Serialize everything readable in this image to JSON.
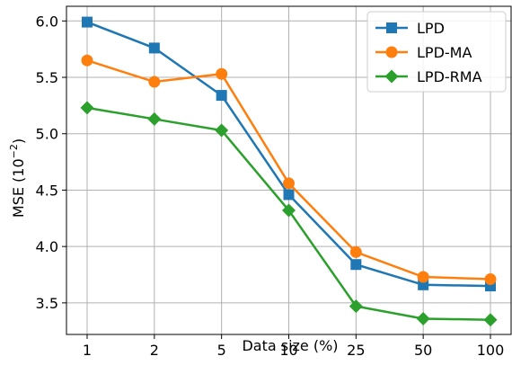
{
  "chart_data": {
    "type": "line",
    "categories": [
      "1",
      "2",
      "5",
      "10",
      "25",
      "50",
      "100"
    ],
    "series": [
      {
        "name": "LPD",
        "values": [
          5.99,
          5.76,
          5.34,
          4.46,
          3.84,
          3.66,
          3.65
        ],
        "color": "#1f77b4",
        "marker": "square"
      },
      {
        "name": "LPD-MA",
        "values": [
          5.65,
          5.46,
          5.53,
          4.56,
          3.95,
          3.73,
          3.71
        ],
        "color": "#ff7f0e",
        "marker": "circle"
      },
      {
        "name": "LPD-RMA",
        "values": [
          5.23,
          5.13,
          5.03,
          4.32,
          3.47,
          3.36,
          3.35
        ],
        "color": "#2ca02c",
        "marker": "diamond"
      }
    ],
    "xlabel": "Data size (%)",
    "ylabel_prefix": "MSE (10",
    "ylabel_exp": "−2",
    "ylabel_suffix": ")",
    "yticks": [
      "3.5",
      "4.0",
      "4.5",
      "5.0",
      "5.5",
      "6.0"
    ],
    "ylim": [
      3.22,
      6.13
    ],
    "grid": true,
    "legend_position": "top-right"
  }
}
